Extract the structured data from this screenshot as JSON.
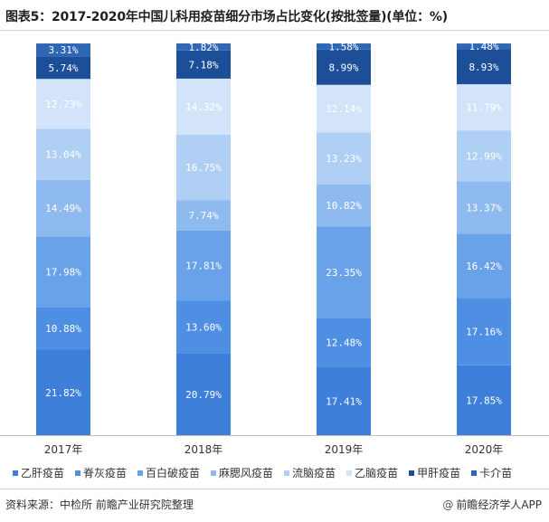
{
  "title": "图表5：2017-2020年中国儿科用疫苗细分市场占比变化(按批签量)(单位：%)",
  "chart_data": {
    "type": "bar",
    "stacked": true,
    "categories": [
      "2017年",
      "2018年",
      "2019年",
      "2020年"
    ],
    "series": [
      {
        "name": "乙肝疫苗",
        "color": "#3d7fd9",
        "values": [
          21.82,
          20.79,
          17.41,
          17.85
        ],
        "labels": [
          "21.82%",
          "20.79%",
          "17.41%",
          "17.85%"
        ]
      },
      {
        "name": "脊灰疫苗",
        "color": "#4e8fe3",
        "values": [
          10.88,
          13.6,
          12.48,
          17.16
        ],
        "labels": [
          "10.88%",
          "13.60%",
          "12.48%",
          "17.16%"
        ]
      },
      {
        "name": "百白破疫苗",
        "color": "#6aa2ea",
        "values": [
          17.98,
          17.81,
          23.35,
          16.42
        ],
        "labels": [
          "17.98%",
          "17.81%",
          "23.35%",
          "16.42%"
        ]
      },
      {
        "name": "麻腮风疫苗",
        "color": "#8fbaf0",
        "values": [
          14.49,
          7.74,
          10.82,
          13.37
        ],
        "labels": [
          "14.49%",
          "7.74%",
          "10.82%",
          "13.37%"
        ]
      },
      {
        "name": "流脑疫苗",
        "color": "#b0cff5",
        "values": [
          13.04,
          16.75,
          13.23,
          12.99
        ],
        "labels": [
          "13.04%",
          "16.75%",
          "13.23%",
          "12.99%"
        ]
      },
      {
        "name": "乙脑疫苗",
        "color": "#d3e4fa",
        "values": [
          12.73,
          14.32,
          12.14,
          11.79
        ],
        "labels": [
          "12.73%",
          "14.32%",
          "12.14%",
          "11.79%"
        ]
      },
      {
        "name": "甲肝疫苗",
        "color": "#1d4f98",
        "values": [
          5.74,
          7.18,
          8.99,
          8.93
        ],
        "labels": [
          "5.74%",
          "7.18%",
          "8.99%",
          "8.93%"
        ]
      },
      {
        "name": "卡介苗",
        "color": "#2f67b5",
        "values": [
          3.31,
          1.82,
          1.58,
          1.48
        ],
        "labels": [
          "3.31%",
          "1.82%",
          "1.58%",
          "1.48%"
        ]
      }
    ],
    "ylim": [
      0,
      100
    ],
    "grid": false,
    "legend_position": "bottom"
  },
  "footer": {
    "source": "资料来源：中检所 前瞻产业研究院整理",
    "brand": "前瞻经济学人APP"
  }
}
